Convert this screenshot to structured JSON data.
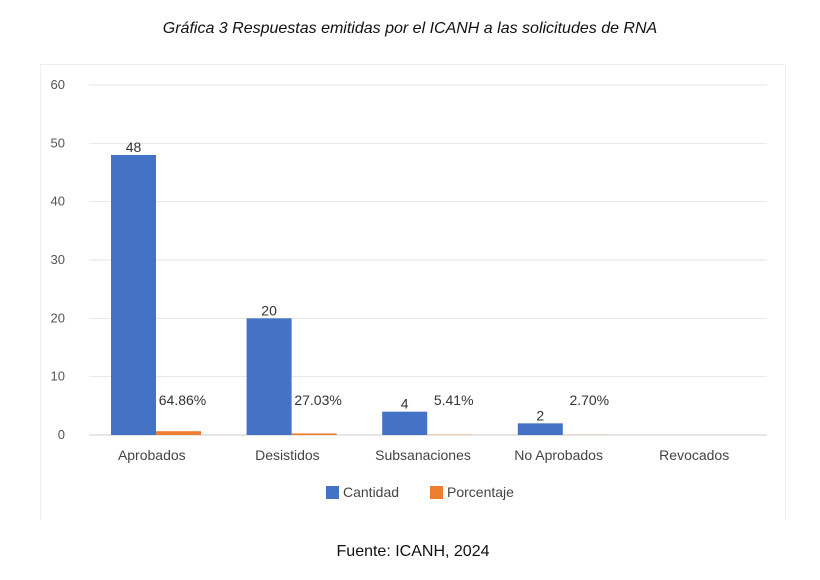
{
  "caption": "Gráfica 3 Respuestas emitidas por el ICANH a las solicitudes de RNA",
  "source": "Fuente: ICANH, 2024",
  "chart_data": {
    "type": "bar",
    "categories": [
      "Aprobados",
      "Desistidos",
      "Subsanaciones",
      "No Aprobados",
      "Revocados"
    ],
    "series": [
      {
        "name": "Cantidad",
        "color": "#4472C4",
        "values": [
          48,
          20,
          4,
          2,
          null
        ],
        "labels": [
          "48",
          "20",
          "4",
          "2",
          ""
        ]
      },
      {
        "name": "Porcentaje",
        "color": "#ED7D31",
        "values": [
          0.6486,
          0.2703,
          0.0541,
          0.027,
          null
        ],
        "labels": [
          "64.86%",
          "27.03%",
          "5.41%",
          "2.70%",
          ""
        ]
      }
    ],
    "yticks": [
      "0",
      "10",
      "20",
      "30",
      "40",
      "50",
      "60"
    ],
    "ylim": [
      0,
      60
    ],
    "grid": true,
    "legend_position": "bottom"
  }
}
